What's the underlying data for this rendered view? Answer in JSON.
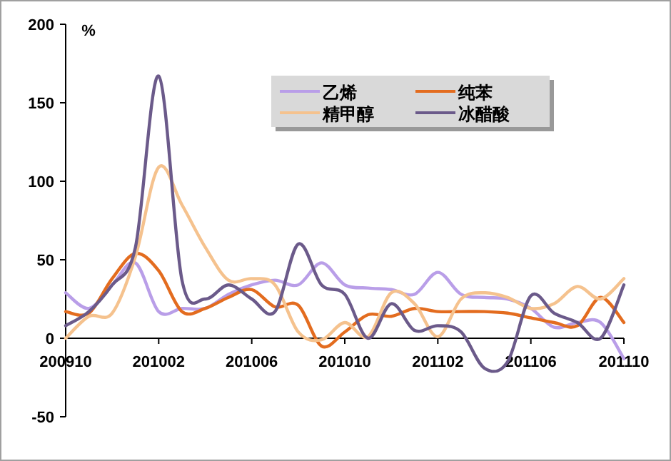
{
  "chart_data": {
    "type": "line",
    "ylabel": "%",
    "x": [
      "2009-10",
      "2009-11",
      "2009-12",
      "2010-01",
      "2010-02",
      "2010-03",
      "2010-04",
      "2010-05",
      "2010-06",
      "2010-07",
      "2010-08",
      "2010-09",
      "2010-10",
      "2010-11",
      "2010-12",
      "2011-01",
      "2011-02",
      "2011-03",
      "2011-04",
      "2011-05",
      "2011-06",
      "2011-07",
      "2011-08",
      "2011-09",
      "2011-10"
    ],
    "series": [
      {
        "name": "乙烯",
        "color": "#b99ee8",
        "values": [
          29,
          19,
          34,
          48,
          17,
          19,
          19,
          28,
          34,
          37,
          34,
          48,
          34,
          32,
          31,
          28,
          42,
          28,
          26,
          25,
          19,
          7,
          10,
          10,
          -13
        ]
      },
      {
        "name": "纯苯",
        "color": "#e36c1f",
        "values": [
          17,
          16,
          38,
          54,
          43,
          17,
          19,
          26,
          31,
          20,
          21,
          -5,
          4,
          15,
          14,
          19,
          17,
          17,
          17,
          16,
          13,
          10,
          8,
          26,
          10
        ]
      },
      {
        "name": "精甲醇",
        "color": "#f5c28e",
        "values": [
          0,
          14,
          16,
          52,
          109,
          85,
          58,
          37,
          38,
          34,
          4,
          -1,
          10,
          1,
          29,
          22,
          1,
          25,
          29,
          26,
          19,
          22,
          33,
          25,
          38
        ]
      },
      {
        "name": "冰醋酸",
        "color": "#6b5a8a",
        "values": [
          8,
          17,
          34,
          58,
          167,
          37,
          25,
          34,
          25,
          17,
          60,
          34,
          28,
          0,
          22,
          5,
          8,
          4,
          -19,
          -15,
          27,
          16,
          10,
          0,
          34
        ]
      }
    ],
    "xlim": [
      "2009-10",
      "2011-10"
    ],
    "xticks": [
      {
        "value": "2009-10",
        "label": "200910"
      },
      {
        "value": "2010-02",
        "label": "201002"
      },
      {
        "value": "2010-06",
        "label": "201006"
      },
      {
        "value": "2010-10",
        "label": "201010"
      },
      {
        "value": "2011-02",
        "label": "201102"
      },
      {
        "value": "2011-06",
        "label": "201106"
      },
      {
        "value": "2011-10",
        "label": "201110"
      }
    ],
    "ylim": [
      -50,
      200
    ],
    "yticks": [
      -50,
      0,
      50,
      100,
      150,
      200
    ],
    "legend": "top right",
    "grid": false,
    "marker": "none",
    "line_style": "solid"
  }
}
